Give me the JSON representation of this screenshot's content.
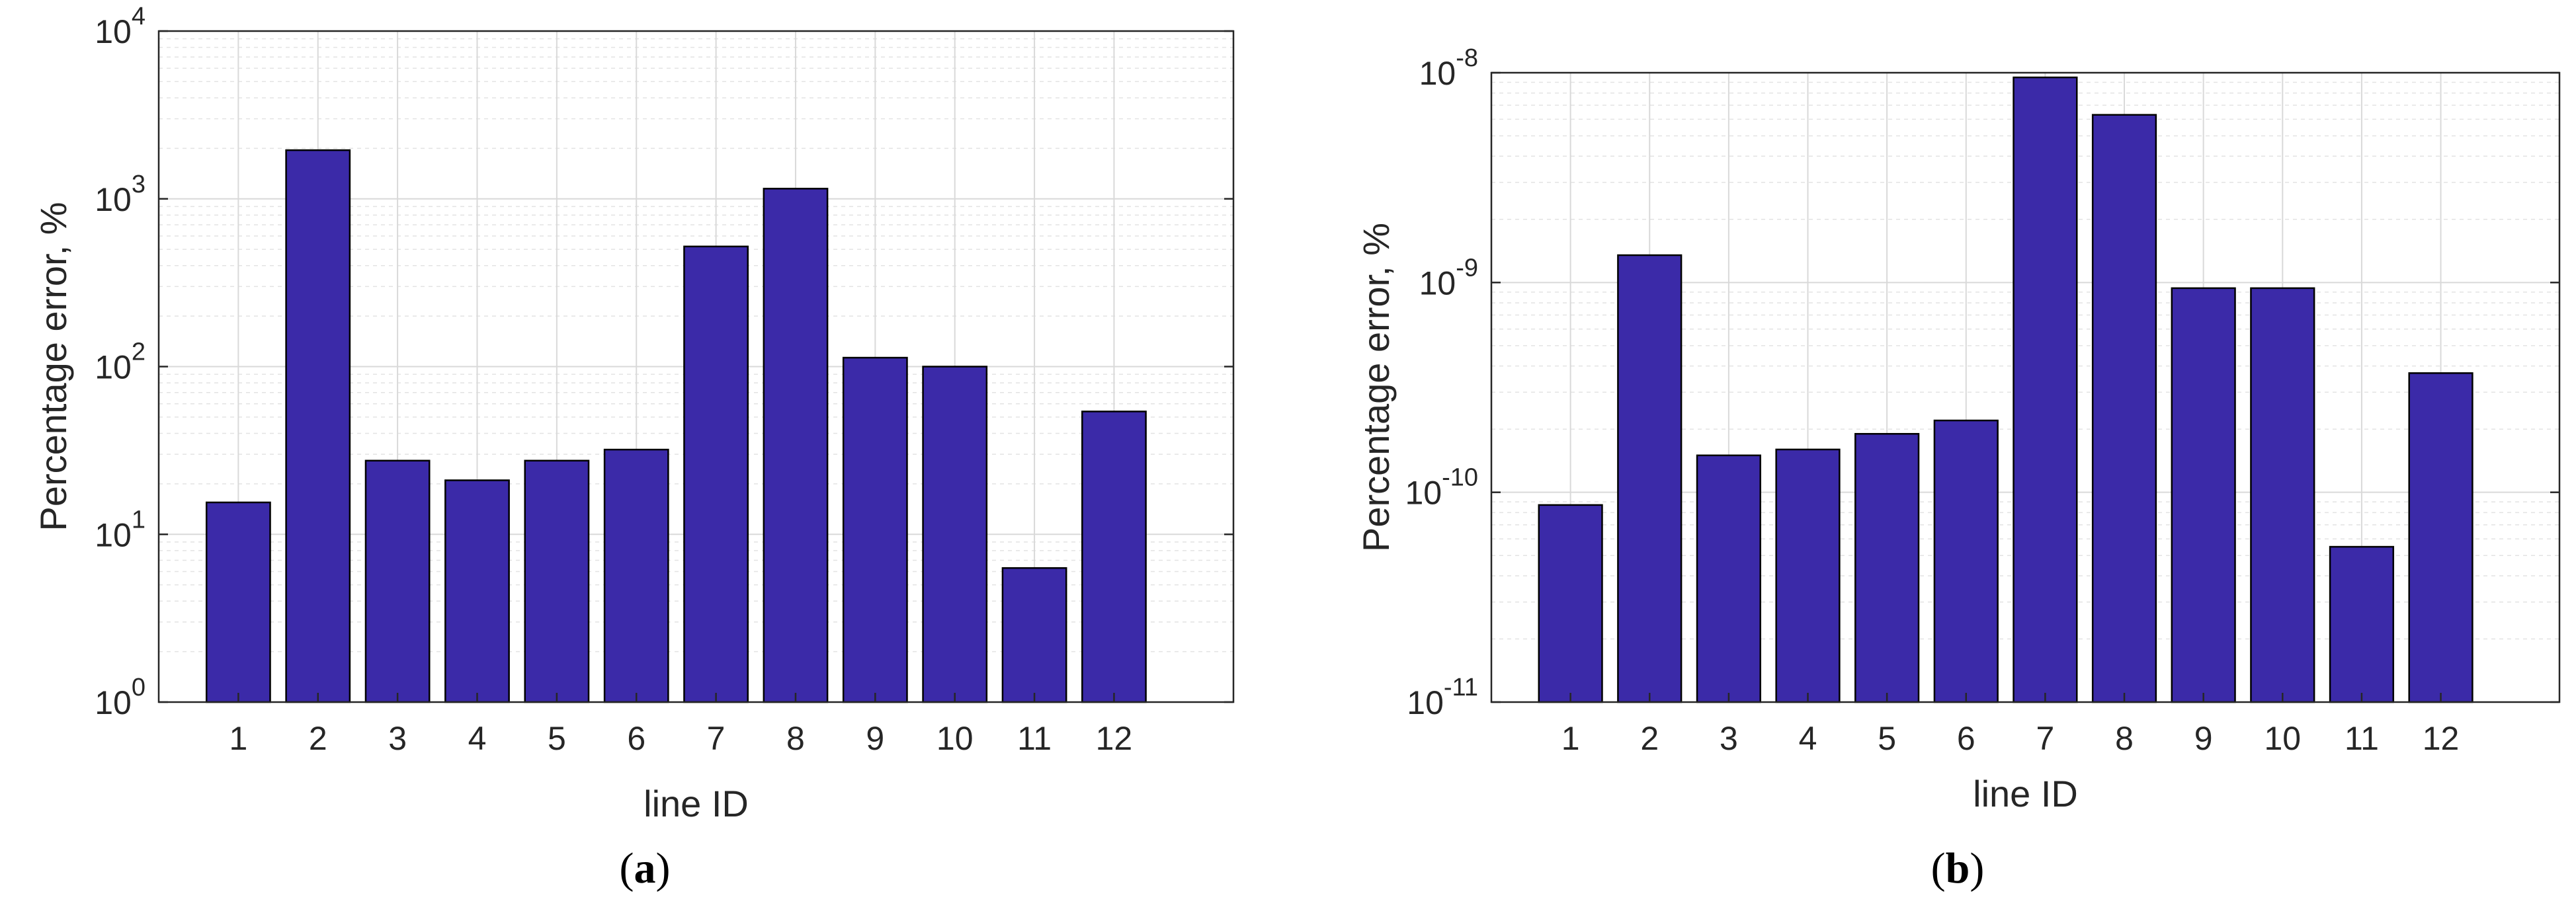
{
  "chart_data": [
    {
      "type": "bar",
      "panel_label_open": "(",
      "panel_label_letter": "a",
      "panel_label_close": ")",
      "xlabel": "line ID",
      "ylabel": "Percentage error, %",
      "yscale": "log",
      "ylim": [
        1,
        10000
      ],
      "xlim": [
        0,
        13.5
      ],
      "grid": true,
      "bar_color": "#3b2aa8",
      "categories": [
        "1",
        "2",
        "3",
        "4",
        "5",
        "6",
        "7",
        "8",
        "9",
        "10",
        "11",
        "12"
      ],
      "values": [
        15.5,
        1950,
        27.5,
        21,
        27.5,
        32,
        520,
        1150,
        113,
        100,
        6.3,
        54
      ],
      "y_ticks": [
        {
          "value": 1,
          "base": "10",
          "exp": "0"
        },
        {
          "value": 10,
          "base": "10",
          "exp": "1"
        },
        {
          "value": 100,
          "base": "10",
          "exp": "2"
        },
        {
          "value": 1000,
          "base": "10",
          "exp": "3"
        },
        {
          "value": 10000,
          "base": "10",
          "exp": "4"
        }
      ]
    },
    {
      "type": "bar",
      "panel_label_open": "(",
      "panel_label_letter": "b",
      "panel_label_close": ")",
      "xlabel": "line ID",
      "ylabel": "Percentage error, %",
      "yscale": "log",
      "ylim": [
        1e-11,
        1e-08
      ],
      "xlim": [
        0,
        13.5
      ],
      "grid": true,
      "bar_color": "#3b2aa8",
      "categories": [
        "1",
        "2",
        "3",
        "4",
        "5",
        "6",
        "7",
        "8",
        "9",
        "10",
        "11",
        "12"
      ],
      "values": [
        8.7e-11,
        1.35e-09,
        1.5e-10,
        1.6e-10,
        1.9e-10,
        2.2e-10,
        9.5e-09,
        6.3e-09,
        9.4e-10,
        9.4e-10,
        5.5e-11,
        3.7e-10
      ],
      "y_ticks": [
        {
          "value": 1e-11,
          "base": "10",
          "exp": "-11"
        },
        {
          "value": 1e-10,
          "base": "10",
          "exp": "-10"
        },
        {
          "value": 1e-09,
          "base": "10",
          "exp": "-9"
        },
        {
          "value": 1e-08,
          "base": "10",
          "exp": "-8"
        }
      ]
    }
  ]
}
